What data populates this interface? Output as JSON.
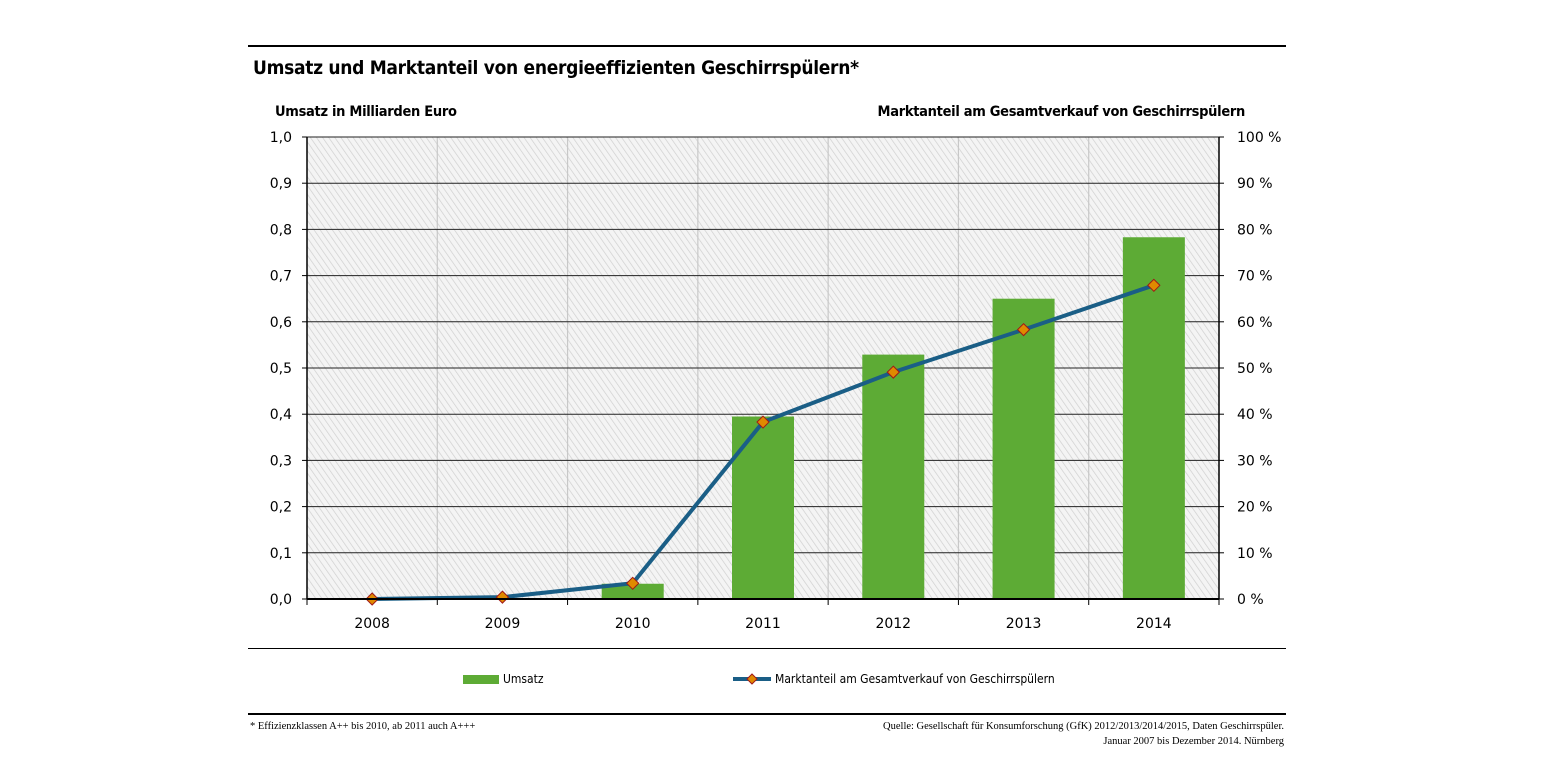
{
  "title": "Umsatz und Marktanteil von energieeffizienten Geschirrspülern*",
  "chart_data": {
    "type": "bar+line",
    "title": "Umsatz und Marktanteil von energieeffizienten Geschirrspülern*",
    "categories": [
      "2008",
      "2009",
      "2010",
      "2011",
      "2012",
      "2013",
      "2014"
    ],
    "y_left": {
      "label": "Umsatz in Milliarden Euro",
      "range": [
        0,
        1.0
      ],
      "ticks": [
        "0,0",
        "0,1",
        "0,2",
        "0,3",
        "0,4",
        "0,5",
        "0,6",
        "0,7",
        "0,8",
        "0,9",
        "1,0"
      ]
    },
    "y_right": {
      "label": "Marktanteil am Gesamtverkauf von Geschirrspülern",
      "range": [
        0,
        100
      ],
      "ticks": [
        "0 %",
        "10 %",
        "20 %",
        "30 %",
        "40 %",
        "50 %",
        "60 %",
        "70 %",
        "80 %",
        "90 %",
        "100 %"
      ]
    },
    "series": [
      {
        "name": "Umsatz",
        "type": "bar",
        "axis": "left",
        "color": "#5dab35",
        "values": [
          0,
          0,
          0.033,
          0.395,
          0.529,
          0.65,
          0.783
        ]
      },
      {
        "name": "Marktanteil am Gesamtverkauf von Geschirrspülern",
        "type": "line",
        "axis": "right",
        "color": "#1a5e86",
        "marker_color": "#e08a00",
        "values": [
          0,
          0.4,
          3.4,
          38.3,
          49.1,
          58.3,
          67.9
        ]
      }
    ],
    "grid": true,
    "legend": "bottom"
  },
  "footnote": "* Effizienzklassen A++ bis 2010, ab 2011 auch A+++",
  "source_line1": "Quelle: Gesellschaft für Konsumforschung (GfK) 2012/2013/2014/2015, Daten Geschirrspüler.",
  "source_line2": "Januar 2007 bis Dezember 2014. Nürnberg"
}
